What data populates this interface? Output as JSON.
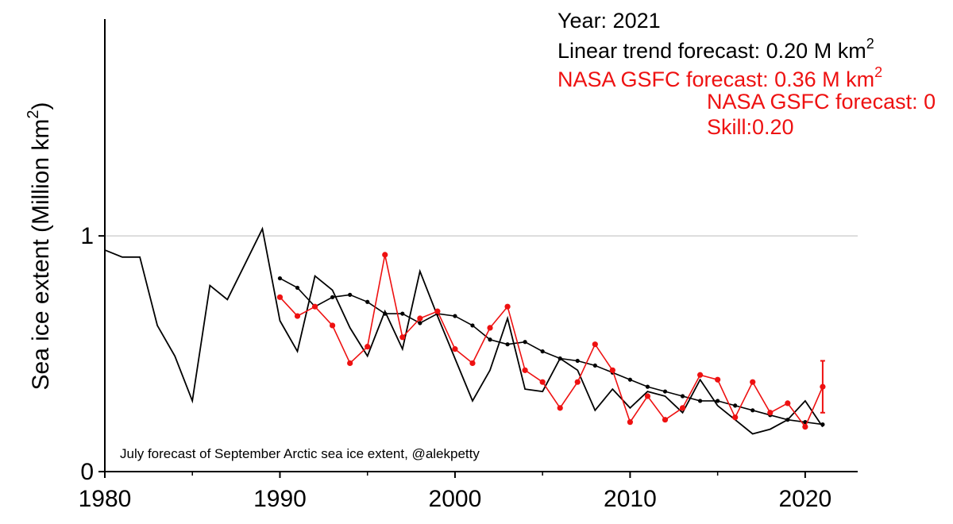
{
  "chart_data": {
    "type": "line",
    "xlabel": "",
    "ylabel": "Sea ice extent (Million km",
    "ylabel_sup": "2",
    "ylabel_close": ")",
    "xlim": [
      1980,
      2023
    ],
    "ylim": [
      0,
      1.92
    ],
    "x_ticks": [
      1980,
      1990,
      2000,
      2010,
      2020
    ],
    "y_ticks": [
      0,
      1
    ],
    "gridlines_y": [
      1
    ],
    "annotations": {
      "year_label": "Year: 2021",
      "linear_label": "Linear trend forecast: 0.20 M km",
      "linear_sup": "2",
      "nasa_label": "NASA GSFC forecast: 0.36 M km",
      "nasa_sup": "2",
      "nasa_label_2": "NASA GSFC forecast: 0",
      "skill_label": "Skill:0.20",
      "credit": "July forecast of September Arctic sea ice extent, @alekpetty"
    },
    "series": [
      {
        "color": "#000000",
        "marker": false,
        "x": [
          1980,
          1981,
          1982,
          1983,
          1984,
          1985,
          1986,
          1987,
          1988,
          1989,
          1990,
          1991,
          1992,
          1993,
          1994,
          1995,
          1996,
          1997,
          1998,
          1999,
          2000,
          2001,
          2002,
          2003,
          2004,
          2005,
          2006,
          2007,
          2008,
          2009,
          2010,
          2011,
          2012,
          2013,
          2014,
          2015,
          2016,
          2017,
          2018,
          2019,
          2020,
          2021
        ],
        "y": [
          0.94,
          0.91,
          0.91,
          0.62,
          0.49,
          0.3,
          0.79,
          0.73,
          0.88,
          1.03,
          0.64,
          0.51,
          0.83,
          0.77,
          0.61,
          0.49,
          0.68,
          0.52,
          0.85,
          0.66,
          0.48,
          0.3,
          0.43,
          0.65,
          0.35,
          0.34,
          0.48,
          0.43,
          0.26,
          0.35,
          0.27,
          0.34,
          0.32,
          0.25,
          0.39,
          0.28,
          0.22,
          0.16,
          0.18,
          0.22,
          0.3,
          0.19
        ]
      },
      {
        "color": "#000000",
        "marker": true,
        "x": [
          1990,
          1991,
          1992,
          1993,
          1994,
          1995,
          1996,
          1997,
          1998,
          1999,
          2000,
          2001,
          2002,
          2003,
          2004,
          2005,
          2006,
          2007,
          2008,
          2009,
          2010,
          2011,
          2012,
          2013,
          2014,
          2015,
          2016,
          2017,
          2018,
          2019,
          2020,
          2021
        ],
        "y": [
          0.82,
          0.78,
          0.7,
          0.74,
          0.75,
          0.72,
          0.67,
          0.67,
          0.63,
          0.67,
          0.66,
          0.62,
          0.56,
          0.54,
          0.55,
          0.51,
          0.48,
          0.47,
          0.45,
          0.42,
          0.39,
          0.36,
          0.34,
          0.32,
          0.3,
          0.3,
          0.28,
          0.26,
          0.24,
          0.22,
          0.21,
          0.2
        ]
      },
      {
        "color": "#ee1111",
        "marker": true,
        "x": [
          1990,
          1991,
          1992,
          1993,
          1994,
          1995,
          1996,
          1997,
          1998,
          1999,
          2000,
          2001,
          2002,
          2003,
          2004,
          2005,
          2006,
          2007,
          2008,
          2009,
          2010,
          2011,
          2012,
          2013,
          2014,
          2015,
          2016,
          2017,
          2018,
          2019,
          2020,
          2021
        ],
        "y": [
          0.74,
          0.66,
          0.7,
          0.62,
          0.46,
          0.53,
          0.92,
          0.57,
          0.65,
          0.68,
          0.52,
          0.46,
          0.61,
          0.7,
          0.43,
          0.38,
          0.27,
          0.38,
          0.54,
          0.43,
          0.21,
          0.32,
          0.22,
          0.27,
          0.41,
          0.39,
          0.23,
          0.38,
          0.25,
          0.29,
          0.19,
          0.36
        ]
      }
    ],
    "error_bar": {
      "x": 2021,
      "y_low": 0.25,
      "y_high": 0.47,
      "color": "#ee1111"
    }
  }
}
